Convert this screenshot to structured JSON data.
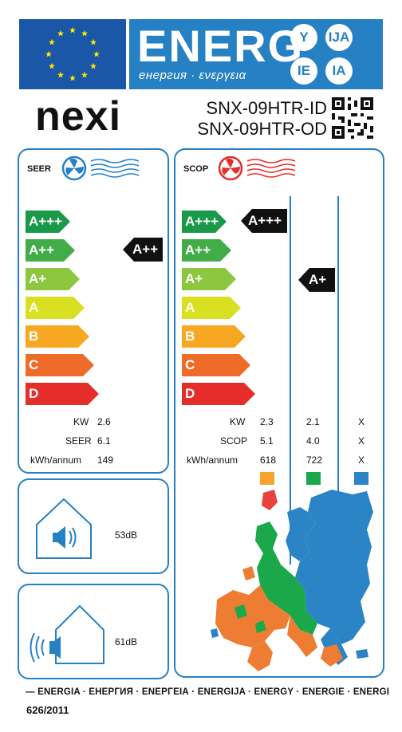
{
  "header": {
    "energy_word": "ENERG",
    "energy_sub": "енергия · ενεργεια",
    "lang_codes": [
      "Y",
      "IJA",
      "IE",
      "IA"
    ],
    "eu_flag_icon": "eu-flag-icon",
    "colors": {
      "eu_blue": "#1b57a7",
      "label_blue": "#2680c4"
    }
  },
  "supplier": {
    "brand": "nexi",
    "model_indoor": "SNX-09HTR-ID",
    "model_outdoor": "SNX-09HTR-OD",
    "qr_icon": "qr-code-icon"
  },
  "scale": {
    "classes": [
      "A+++",
      "A++",
      "A+",
      "A",
      "B",
      "C",
      "D"
    ],
    "colors": [
      "#1a9a48",
      "#42ad48",
      "#8dc63f",
      "#d9e021",
      "#f7a823",
      "#ee6b2a",
      "#e52d2a"
    ]
  },
  "cooling": {
    "mode_label": "SEER",
    "fan_icon": "fan-cold-icon",
    "rating": "A++",
    "rows": [
      {
        "label": "KW",
        "value": "2.6"
      },
      {
        "label": "SEER",
        "value": "6.1"
      },
      {
        "label": "kWh/annum",
        "value": "149"
      }
    ]
  },
  "heating": {
    "mode_label": "SCOP",
    "fan_icon": "fan-warm-icon",
    "ratings": [
      "A+++",
      "A+",
      ""
    ],
    "rows": [
      {
        "label": "KW",
        "values": [
          "2.3",
          "2.1",
          "X"
        ]
      },
      {
        "label": "SCOP",
        "values": [
          "5.1",
          "4.0",
          "X"
        ]
      },
      {
        "label": "kWh/annum",
        "values": [
          "618",
          "722",
          "X"
        ]
      }
    ],
    "climate_colors": [
      "#f6a42c",
      "#1aa84b",
      "#2b84c6"
    ]
  },
  "noise": {
    "indoor": {
      "icon": "indoor-speaker-icon",
      "value": "53dB"
    },
    "outdoor": {
      "icon": "outdoor-speaker-icon",
      "value": "61dB"
    }
  },
  "footer": {
    "languages": "—  ENERGIA · ЕНЕРГИЯ · ΕΝΕΡΓΕΙΑ · ENERGIJA · ENERGY · ENERGIE · ENERGI",
    "regulation": "626/2011"
  }
}
